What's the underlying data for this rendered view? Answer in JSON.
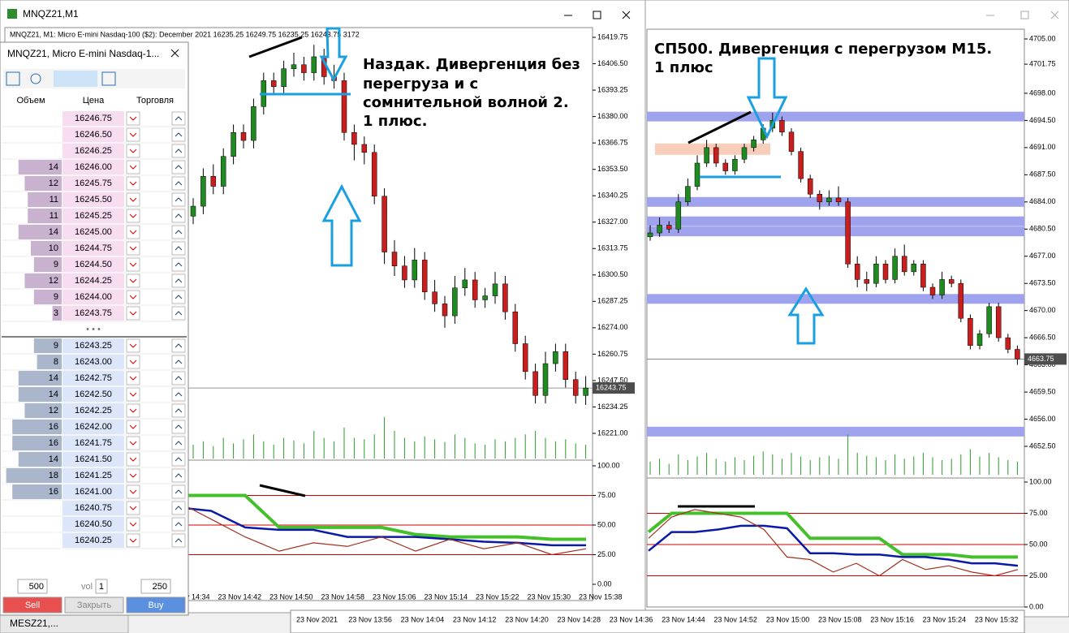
{
  "left_window": {
    "title": "MNQZ21,M1",
    "info": "MNQZ21, M1:  Micro E-mini Nasdaq-100 ($2): December 2021  16235.25 16249.75 16235.25 16243.75  3172",
    "annotation": [
      "Наздак. Дивергенция без",
      "перегруза и с",
      "сомнительной волной 2.",
      "1 плюс."
    ]
  },
  "left_chart": {
    "ylim": [
      16221.0,
      16419.75
    ],
    "yticks": [
      {
        "value": 16419.75,
        "label": "16419.75"
      },
      {
        "value": 16406.5,
        "label": "16406.50"
      },
      {
        "value": 16393.25,
        "label": "16393.25"
      },
      {
        "value": 16380,
        "label": "16380.00"
      },
      {
        "value": 16366.75,
        "label": "16366.75"
      },
      {
        "value": 16353.5,
        "label": "16353.50"
      },
      {
        "value": 16340.25,
        "label": "16340.25"
      },
      {
        "value": 16327,
        "label": "16327.00"
      },
      {
        "value": 16313.75,
        "label": "16313.75"
      },
      {
        "value": 16300.5,
        "label": "16300.50"
      },
      {
        "value": 16287.25,
        "label": "16287.25"
      },
      {
        "value": 16274,
        "label": "16274.00"
      },
      {
        "value": 16260.75,
        "label": "16260.75"
      },
      {
        "value": 16247.5,
        "label": "16247.50"
      },
      {
        "value": 16234.25,
        "label": "16234.25"
      },
      {
        "value": 16221,
        "label": "16221.00"
      }
    ],
    "current": {
      "value": 16243.75,
      "label": "16243.75"
    },
    "candles": [
      [
        16330,
        16339,
        16326,
        16335
      ],
      [
        16335,
        16354,
        16331,
        16350
      ],
      [
        16350,
        16356,
        16341,
        16345
      ],
      [
        16345,
        16364,
        16341,
        16360
      ],
      [
        16360,
        16376,
        16356,
        16372
      ],
      [
        16372,
        16376,
        16364,
        16368
      ],
      [
        16368,
        16389,
        16364,
        16385
      ],
      [
        16385,
        16402,
        16381,
        16398
      ],
      [
        16398,
        16402,
        16391,
        16395
      ],
      [
        16395,
        16408,
        16391,
        16404
      ],
      [
        16404,
        16412,
        16400,
        16406
      ],
      [
        16406,
        16410,
        16398,
        16402
      ],
      [
        16402,
        16416,
        16398,
        16410
      ],
      [
        16410,
        16414,
        16396,
        16400
      ],
      [
        16400,
        16406,
        16394,
        16398
      ],
      [
        16398,
        16402,
        16368,
        16372
      ],
      [
        16372,
        16376,
        16358,
        16366
      ],
      [
        16366,
        16370,
        16356,
        16362
      ],
      [
        16362,
        16366,
        16336,
        16340
      ],
      [
        16340,
        16344,
        16306,
        16312
      ],
      [
        16312,
        16318,
        16300,
        16305
      ],
      [
        16305,
        16310,
        16294,
        16298
      ],
      [
        16298,
        16314,
        16294,
        16308
      ],
      [
        16308,
        16312,
        16288,
        16292
      ],
      [
        16292,
        16298,
        16282,
        16286
      ],
      [
        16286,
        16290,
        16274,
        16280
      ],
      [
        16280,
        16300,
        16276,
        16294
      ],
      [
        16294,
        16304,
        16290,
        16298
      ],
      [
        16298,
        16302,
        16284,
        16288
      ],
      [
        16288,
        16294,
        16284,
        16290
      ],
      [
        16290,
        16302,
        16286,
        16296
      ],
      [
        16296,
        16300,
        16278,
        16282
      ],
      [
        16282,
        16286,
        16262,
        16266
      ],
      [
        16266,
        16270,
        16248,
        16252
      ],
      [
        16252,
        16256,
        16236,
        16240
      ],
      [
        16240,
        16262,
        16236,
        16256
      ],
      [
        16256,
        16266,
        16252,
        16262
      ],
      [
        16262,
        16266,
        16244,
        16248
      ],
      [
        16248,
        16252,
        16236,
        16240
      ],
      [
        16240,
        16249.75,
        16235.25,
        16243.75
      ]
    ],
    "volumes": [
      20,
      25,
      18,
      30,
      22,
      28,
      35,
      25,
      20,
      30,
      26,
      22,
      40,
      30,
      25,
      45,
      30,
      28,
      35,
      60,
      40,
      30,
      25,
      32,
      28,
      24,
      35,
      30,
      22,
      20,
      28,
      25,
      30,
      35,
      40,
      30,
      25,
      28,
      22,
      20
    ],
    "xticks": [
      "23 Nov 14:34",
      "23 Nov 14:42",
      "23 Nov 14:50",
      "23 Nov 14:58",
      "23 Nov 15:06",
      "23 Nov 15:14",
      "23 Nov 15:22",
      "23 Nov 15:30",
      "23 Nov 15:38"
    ],
    "osc": {
      "ylim": [
        0,
        100
      ],
      "yticks": [
        {
          "value": 100,
          "label": "100.00"
        },
        {
          "value": 75,
          "label": "75.00"
        },
        {
          "value": 50,
          "label": "50.00"
        },
        {
          "value": 25,
          "label": "25.00"
        },
        {
          "value": 0,
          "label": "0.00"
        }
      ],
      "levels": [
        75,
        50,
        25
      ],
      "level_color": "#d00000",
      "series": [
        {
          "color": "#44c02a",
          "values": [
            50,
            50,
            62,
            75,
            75,
            75,
            75,
            75,
            48,
            48,
            48,
            48,
            42,
            40,
            40,
            40,
            38,
            38
          ]
        },
        {
          "color": "#0a1aa8",
          "values": [
            48,
            52,
            62,
            62,
            65,
            65,
            62,
            48,
            46,
            46,
            40,
            40,
            40,
            38,
            36,
            35,
            33,
            33
          ]
        },
        {
          "color": "#a03020",
          "values": [
            45,
            55,
            70,
            80,
            75,
            70,
            55,
            40,
            28,
            35,
            32,
            40,
            28,
            38,
            30,
            35,
            25,
            30
          ]
        }
      ]
    }
  },
  "right_window": {
    "annotation": [
      "СП500. Дивергенция с перегрузом M15.",
      "1 плюс"
    ]
  },
  "right_chart": {
    "ylim": [
      4652.5,
      4705.0
    ],
    "yticks": [
      {
        "value": 4705,
        "label": "4705.00"
      },
      {
        "value": 4701.75,
        "label": "4701.75"
      },
      {
        "value": 4698,
        "label": "4698.00"
      },
      {
        "value": 4694.5,
        "label": "4694.50"
      },
      {
        "value": 4691,
        "label": "4691.00"
      },
      {
        "value": 4687.5,
        "label": "4687.50"
      },
      {
        "value": 4684,
        "label": "4684.00"
      },
      {
        "value": 4680.5,
        "label": "4680.50"
      },
      {
        "value": 4677,
        "label": "4677.00"
      },
      {
        "value": 4673.5,
        "label": "4673.50"
      },
      {
        "value": 4670,
        "label": "4670.00"
      },
      {
        "value": 4666.5,
        "label": "4666.50"
      },
      {
        "value": 4663,
        "label": "4663.00"
      },
      {
        "value": 4659.5,
        "label": "4659.50"
      },
      {
        "value": 4656,
        "label": "4656.00"
      },
      {
        "value": 4652.5,
        "label": "4652.50"
      }
    ],
    "current": {
      "value": 4663.75,
      "label": "4663.75"
    },
    "levels": [
      4695,
      4684,
      4681.5,
      4680.2,
      4671.5,
      4654.4
    ],
    "level_color": "#9fa3ee",
    "zone": 4690.8,
    "zone_color": "#f6c0a8",
    "candles": [
      [
        4679.5,
        4681,
        4679,
        4680
      ],
      [
        4680,
        4682,
        4679.5,
        4681
      ],
      [
        4681,
        4681.5,
        4680,
        4680.5
      ],
      [
        4680.5,
        4685,
        4680,
        4684
      ],
      [
        4684,
        4687,
        4683.5,
        4686
      ],
      [
        4686,
        4690,
        4685.5,
        4689
      ],
      [
        4689,
        4692,
        4688.5,
        4691
      ],
      [
        4691,
        4691.5,
        4688.5,
        4689
      ],
      [
        4689,
        4689.5,
        4687.5,
        4688
      ],
      [
        4688,
        4690,
        4687.5,
        4689.5
      ],
      [
        4689.5,
        4691.5,
        4689,
        4691
      ],
      [
        4691,
        4692.5,
        4690.5,
        4692
      ],
      [
        4692,
        4694,
        4691.5,
        4693.5
      ],
      [
        4693.5,
        4695.5,
        4693,
        4694.5
      ],
      [
        4694.5,
        4695,
        4692.5,
        4693
      ],
      [
        4693,
        4693.5,
        4690,
        4690.5
      ],
      [
        4690.5,
        4691,
        4686.5,
        4687
      ],
      [
        4687,
        4687.5,
        4684.5,
        4685
      ],
      [
        4685,
        4685.5,
        4683,
        4684
      ],
      [
        4684,
        4685.5,
        4683.5,
        4684.5
      ],
      [
        4684.5,
        4686,
        4683.5,
        4684
      ],
      [
        4684,
        4684.5,
        4675.5,
        4676
      ],
      [
        4676,
        4677,
        4673,
        4674
      ],
      [
        4674,
        4675,
        4672.5,
        4673.5
      ],
      [
        4673.5,
        4677,
        4673,
        4676
      ],
      [
        4676,
        4676.5,
        4673.5,
        4674
      ],
      [
        4674,
        4678,
        4673.5,
        4677
      ],
      [
        4677,
        4678.5,
        4674.5,
        4675
      ],
      [
        4675,
        4676.5,
        4674.5,
        4676
      ],
      [
        4676,
        4676.5,
        4672.5,
        4673
      ],
      [
        4673,
        4673.5,
        4671.5,
        4672
      ],
      [
        4672,
        4675,
        4671.5,
        4674
      ],
      [
        4674,
        4674.5,
        4673,
        4673.5
      ],
      [
        4673.5,
        4674,
        4668.5,
        4669
      ],
      [
        4669,
        4669.5,
        4665,
        4665.5
      ],
      [
        4665.5,
        4667.5,
        4665,
        4667
      ],
      [
        4667,
        4671,
        4666.5,
        4670.5
      ],
      [
        4670.5,
        4671,
        4666,
        4666.5
      ],
      [
        4666.5,
        4667,
        4664.5,
        4665
      ],
      [
        4665,
        4665.5,
        4663,
        4663.75
      ]
    ],
    "volumes": [
      18,
      22,
      15,
      28,
      20,
      25,
      30,
      22,
      18,
      24,
      20,
      26,
      32,
      28,
      22,
      30,
      25,
      20,
      24,
      26,
      22,
      55,
      30,
      26,
      24,
      20,
      28,
      22,
      25,
      30,
      24,
      20,
      22,
      28,
      35,
      25,
      30,
      24,
      20,
      18
    ],
    "xticks": [
      "23 Nov 2021",
      "23 Nov 13:56",
      "23 Nov 14:04",
      "23 Nov 14:12",
      "23 Nov 14:20",
      "23 Nov 14:28",
      "23 Nov 14:36",
      "23 Nov 14:44",
      "23 Nov 14:52",
      "23 Nov 15:00",
      "23 Nov 15:08",
      "23 Nov 15:16",
      "23 Nov 15:24",
      "23 Nov 15:32"
    ],
    "osc": {
      "ylim": [
        0,
        100
      ],
      "yticks": [
        {
          "value": 100,
          "label": "100.00"
        },
        {
          "value": 75,
          "label": "75.00"
        },
        {
          "value": 50,
          "label": "50.00"
        },
        {
          "value": 25,
          "label": "25.00"
        },
        {
          "value": 0,
          "label": "0.00"
        }
      ],
      "levels": [
        75,
        50,
        25
      ],
      "level_color": "#d00000",
      "series": [
        {
          "color": "#44c02a",
          "values": [
            60,
            75,
            75,
            75,
            75,
            75,
            75,
            55,
            55,
            55,
            55,
            42,
            42,
            42,
            40,
            40,
            40
          ]
        },
        {
          "color": "#0a1aa8",
          "values": [
            45,
            60,
            60,
            62,
            65,
            65,
            63,
            43,
            43,
            42,
            42,
            40,
            40,
            38,
            35,
            35,
            33
          ]
        },
        {
          "color": "#a03020",
          "values": [
            55,
            72,
            78,
            75,
            72,
            62,
            40,
            38,
            28,
            35,
            25,
            38,
            30,
            33,
            28,
            25,
            30
          ]
        }
      ]
    }
  },
  "dom": {
    "title": "MNQZ21, Micro E-mini Nasdaq-1...",
    "headers": [
      "Объем",
      "Цена",
      "Торговля"
    ],
    "asks": [
      [
        null,
        "16246.75"
      ],
      [
        null,
        "16246.50"
      ],
      [
        null,
        "16246.25"
      ],
      [
        14,
        "16246.00"
      ],
      [
        12,
        "16245.75"
      ],
      [
        11,
        "16245.50"
      ],
      [
        11,
        "16245.25"
      ],
      [
        14,
        "16245.00"
      ],
      [
        10,
        "16244.75"
      ],
      [
        9,
        "16244.50"
      ],
      [
        12,
        "16244.25"
      ],
      [
        9,
        "16244.00"
      ],
      [
        3,
        "16243.75"
      ]
    ],
    "bids": [
      [
        9,
        "16243.25"
      ],
      [
        8,
        "16243.00"
      ],
      [
        14,
        "16242.75"
      ],
      [
        14,
        "16242.50"
      ],
      [
        12,
        "16242.25"
      ],
      [
        16,
        "16242.00"
      ],
      [
        16,
        "16241.75"
      ],
      [
        14,
        "16241.50"
      ],
      [
        18,
        "16241.25"
      ],
      [
        16,
        "16241.00"
      ],
      [
        null,
        "16240.75"
      ],
      [
        null,
        "16240.50"
      ],
      [
        null,
        "16240.25"
      ]
    ],
    "separator": "• • •",
    "qty_left": "500",
    "vol_label": "vol",
    "vol_value": "1",
    "qty_right": "250",
    "buttons": [
      "Sell",
      "Закрыть",
      "Buy"
    ]
  },
  "bottom_tab": "MESZ21,..."
}
